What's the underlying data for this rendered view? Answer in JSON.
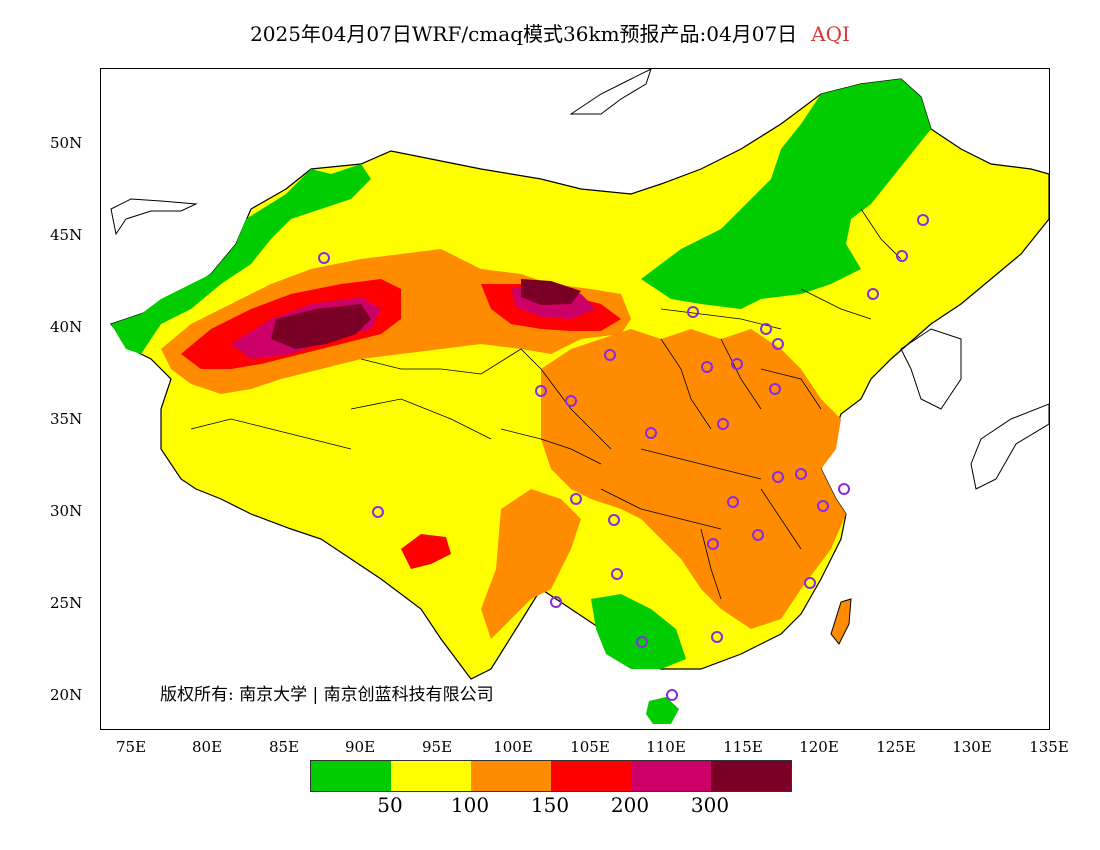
{
  "title": {
    "main": "2025年04月07日WRF/cmaq模式36km预报产品:04月07日",
    "product": "AQI"
  },
  "axes": {
    "lat_labels": [
      "50N",
      "45N",
      "40N",
      "35N",
      "30N",
      "25N",
      "20N"
    ],
    "lon_labels": [
      "75E",
      "80E",
      "85E",
      "90E",
      "95E",
      "100E",
      "105E",
      "110E",
      "115E",
      "120E",
      "125E",
      "130E",
      "135E"
    ]
  },
  "copyright": "版权所有: 南京大学 | 南京创蓝科技有限公司",
  "legend": {
    "colors": [
      "#00cc00",
      "#ffff00",
      "#ff8c00",
      "#ff0000",
      "#cc0066",
      "#7a0026"
    ],
    "labels": [
      "50",
      "100",
      "150",
      "200",
      "300"
    ]
  },
  "colors": {
    "good": "#00cc00",
    "moderate": "#ffff00",
    "sensitive": "#ff8c00",
    "unhealthy": "#ff0000",
    "very_unhealthy": "#cc0066",
    "hazardous": "#7a0026",
    "station_marker": "#8a2be2"
  }
}
